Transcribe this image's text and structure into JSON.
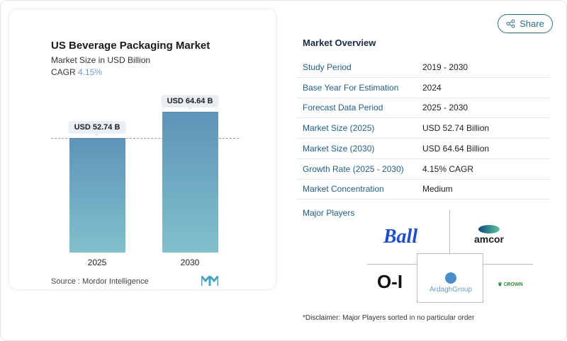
{
  "chart": {
    "title": "US Beverage Packaging Market",
    "subtitle": "Market Size in USD Billion",
    "cagr_label": "CAGR",
    "cagr_value": "4.15%",
    "source_label": "Source :",
    "source_value": "Mordor Intelligence"
  },
  "chart_data": {
    "type": "bar",
    "categories": [
      "2025",
      "2030"
    ],
    "values": [
      52.74,
      64.64
    ],
    "data_labels": [
      "USD 52.74 B",
      "USD 64.64 B"
    ],
    "title": "US Beverage Packaging Market",
    "ylabel": "Market Size in USD Billion",
    "colors": [
      "#5f93b8",
      "#7fc1cc"
    ]
  },
  "share_label": "Share",
  "overview": {
    "title": "Market Overview",
    "rows": [
      {
        "k": "Study Period",
        "v": "2019 - 2030"
      },
      {
        "k": "Base Year For Estimation",
        "v": "2024"
      },
      {
        "k": "Forecast Data Period",
        "v": "2025 - 2030"
      },
      {
        "k": "Market Size (2025)",
        "v": "USD 52.74 Billion"
      },
      {
        "k": "Market Size (2030)",
        "v": "USD 64.64 Billion"
      },
      {
        "k": "Growth Rate (2025 - 2030)",
        "v": "4.15% CAGR"
      },
      {
        "k": "Market Concentration",
        "v": "Medium"
      }
    ],
    "players_label": "Major Players",
    "players": [
      "Ball",
      "amcor",
      "O-I",
      "ArdaghGroup",
      "CROWN"
    ],
    "disclaimer": "*Disclaimer: Major Players sorted in no particular order"
  }
}
